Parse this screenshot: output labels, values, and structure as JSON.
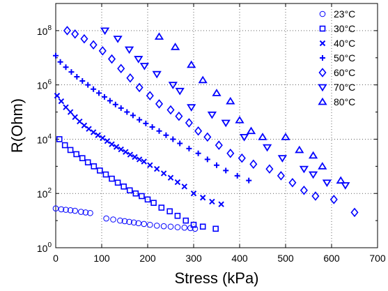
{
  "chart_data": {
    "type": "scatter",
    "title": "",
    "xlabel": "Stress (kPa)",
    "ylabel": "R(Ohm)",
    "xlim": [
      0,
      700
    ],
    "ylim": [
      1,
      1000000000
    ],
    "yscale": "log",
    "x_ticks": [
      "0",
      "100",
      "200",
      "300",
      "400",
      "500",
      "600",
      "700"
    ],
    "y_ticks": [
      {
        "base": "10",
        "exp": "0"
      },
      {
        "base": "10",
        "exp": "2"
      },
      {
        "base": "10",
        "exp": "4"
      },
      {
        "base": "10",
        "exp": "6"
      },
      {
        "base": "10",
        "exp": "8"
      }
    ],
    "grid": "dotted",
    "legend": "top-right",
    "marker_color": "#0000ff",
    "series": [
      {
        "name": "23°C",
        "marker": "circle",
        "points": [
          [
            0,
            28
          ],
          [
            12,
            26
          ],
          [
            22,
            25
          ],
          [
            32,
            24
          ],
          [
            42,
            23
          ],
          [
            55,
            21
          ],
          [
            65,
            20
          ],
          [
            75,
            19
          ],
          [
            110,
            12
          ],
          [
            125,
            11
          ],
          [
            140,
            10
          ],
          [
            150,
            9.5
          ],
          [
            160,
            9
          ],
          [
            170,
            8.5
          ],
          [
            180,
            8
          ],
          [
            192,
            7.5
          ],
          [
            205,
            7
          ],
          [
            220,
            6.5
          ],
          [
            235,
            6.2
          ],
          [
            250,
            6
          ],
          [
            265,
            5.7
          ],
          [
            280,
            5.5
          ],
          [
            293,
            5.3
          ],
          [
            303,
            5
          ]
        ]
      },
      {
        "name": "30°C",
        "marker": "square",
        "points": [
          [
            8,
            10000
          ],
          [
            20,
            6000
          ],
          [
            32,
            4000
          ],
          [
            45,
            2800
          ],
          [
            58,
            2000
          ],
          [
            70,
            1400
          ],
          [
            83,
            1000
          ],
          [
            96,
            700
          ],
          [
            109,
            500
          ],
          [
            122,
            350
          ],
          [
            135,
            250
          ],
          [
            148,
            180
          ],
          [
            161,
            130
          ],
          [
            174,
            100
          ],
          [
            187,
            80
          ],
          [
            200,
            60
          ],
          [
            213,
            45
          ],
          [
            230,
            30
          ],
          [
            248,
            22
          ],
          [
            265,
            15
          ],
          [
            283,
            10
          ],
          [
            300,
            7
          ],
          [
            320,
            6
          ],
          [
            348,
            5
          ]
        ]
      },
      {
        "name": "40°C",
        "marker": "x",
        "points": [
          [
            3,
            400000
          ],
          [
            12,
            250000
          ],
          [
            22,
            150000
          ],
          [
            32,
            100000
          ],
          [
            42,
            65000
          ],
          [
            52,
            45000
          ],
          [
            62,
            32000
          ],
          [
            72,
            24000
          ],
          [
            82,
            18000
          ],
          [
            92,
            14000
          ],
          [
            102,
            11000
          ],
          [
            112,
            8500
          ],
          [
            122,
            6500
          ],
          [
            132,
            5200
          ],
          [
            142,
            4200
          ],
          [
            152,
            3400
          ],
          [
            162,
            2700
          ],
          [
            172,
            2200
          ],
          [
            182,
            1800
          ],
          [
            192,
            1500
          ],
          [
            205,
            1100
          ],
          [
            220,
            800
          ],
          [
            235,
            550
          ],
          [
            250,
            380
          ],
          [
            265,
            260
          ],
          [
            280,
            180
          ],
          [
            300,
            100
          ],
          [
            320,
            70
          ],
          [
            340,
            50
          ],
          [
            360,
            40
          ]
        ]
      },
      {
        "name": "50°C",
        "marker": "plus",
        "points": [
          [
            0,
            12000000
          ],
          [
            10,
            7000000
          ],
          [
            22,
            4500000
          ],
          [
            34,
            3000000
          ],
          [
            46,
            2000000
          ],
          [
            58,
            1400000
          ],
          [
            70,
            1000000
          ],
          [
            82,
            700000
          ],
          [
            94,
            500000
          ],
          [
            106,
            360000
          ],
          [
            118,
            260000
          ],
          [
            130,
            190000
          ],
          [
            142,
            140000
          ],
          [
            155,
            100000
          ],
          [
            168,
            75000
          ],
          [
            182,
            52000
          ],
          [
            196,
            38000
          ],
          [
            210,
            28000
          ],
          [
            225,
            20000
          ],
          [
            240,
            14000
          ],
          [
            255,
            10000
          ],
          [
            270,
            7000
          ],
          [
            290,
            4500
          ],
          [
            310,
            3000
          ],
          [
            330,
            1800
          ],
          [
            350,
            1100
          ],
          [
            370,
            700
          ],
          [
            395,
            450
          ],
          [
            420,
            300
          ]
        ]
      },
      {
        "name": "60°C",
        "marker": "diamond",
        "points": [
          [
            25,
            100000000
          ],
          [
            42,
            75000000
          ],
          [
            62,
            50000000
          ],
          [
            82,
            30000000
          ],
          [
            102,
            18000000
          ],
          [
            122,
            9000000
          ],
          [
            142,
            4000000
          ],
          [
            162,
            1800000
          ],
          [
            182,
            800000
          ],
          [
            205,
            400000
          ],
          [
            225,
            200000
          ],
          [
            250,
            120000
          ],
          [
            268,
            70000
          ],
          [
            290,
            40000
          ],
          [
            310,
            20000
          ],
          [
            330,
            12000
          ],
          [
            355,
            6000
          ],
          [
            380,
            3000
          ],
          [
            405,
            2000
          ],
          [
            430,
            1200
          ],
          [
            465,
            800
          ],
          [
            490,
            450
          ],
          [
            515,
            250
          ],
          [
            540,
            130
          ],
          [
            565,
            80
          ],
          [
            605,
            60
          ],
          [
            650,
            20
          ]
        ]
      },
      {
        "name": "70°C",
        "marker": "triangle-down",
        "points": [
          [
            107,
            100000000
          ],
          [
            135,
            50000000
          ],
          [
            160,
            20000000
          ],
          [
            180,
            9000000
          ],
          [
            193,
            5000000
          ],
          [
            220,
            2500000
          ],
          [
            255,
            1000000
          ],
          [
            270,
            600000
          ],
          [
            295,
            150000
          ],
          [
            340,
            80000
          ],
          [
            370,
            40000
          ],
          [
            410,
            12000
          ],
          [
            460,
            5000
          ],
          [
            493,
            2000
          ],
          [
            540,
            800
          ],
          [
            560,
            500
          ],
          [
            590,
            250
          ],
          [
            630,
            200
          ]
        ]
      },
      {
        "name": "80°C",
        "marker": "triangle-up",
        "points": [
          [
            225,
            60000000
          ],
          [
            260,
            25000000
          ],
          [
            295,
            5500000
          ],
          [
            320,
            1500000
          ],
          [
            350,
            500000
          ],
          [
            380,
            250000
          ],
          [
            400,
            50000
          ],
          [
            425,
            20000
          ],
          [
            450,
            12000
          ],
          [
            500,
            12000
          ],
          [
            530,
            4000
          ],
          [
            560,
            2500
          ],
          [
            580,
            1000
          ],
          [
            620,
            300
          ]
        ]
      }
    ]
  }
}
